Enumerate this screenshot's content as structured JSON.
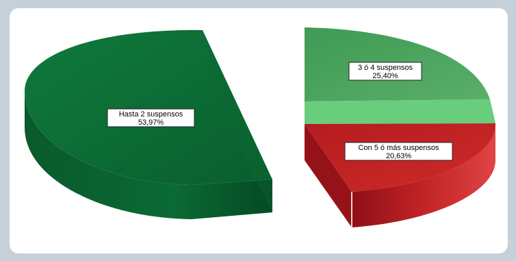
{
  "chart_data": {
    "type": "pie",
    "title": "",
    "categories": [
      "Hasta 2 suspensos",
      "3 ó 4 suspensos",
      "Con 5 ó más suspensos"
    ],
    "values": [
      53.97,
      25.4,
      20.63
    ],
    "labels": [
      {
        "name": "Hasta 2 suspensos",
        "value": "53,97%"
      },
      {
        "name": "3 ó 4 suspensos",
        "value": "25,40%"
      },
      {
        "name": "Con 5 ó más suspensos",
        "value": "20,63%"
      }
    ],
    "colors": {
      "hasta2_top": "#0a6632",
      "hasta2_side": "#07532a",
      "tres4_top": "#4aa35e",
      "tres4_highlight": "#6bcf7d",
      "cinco_top": "#c42222",
      "cinco_side": "#a3141a",
      "cinco_side_light": "#d23a3a"
    },
    "style": "3d-exploded",
    "legend": "none"
  }
}
